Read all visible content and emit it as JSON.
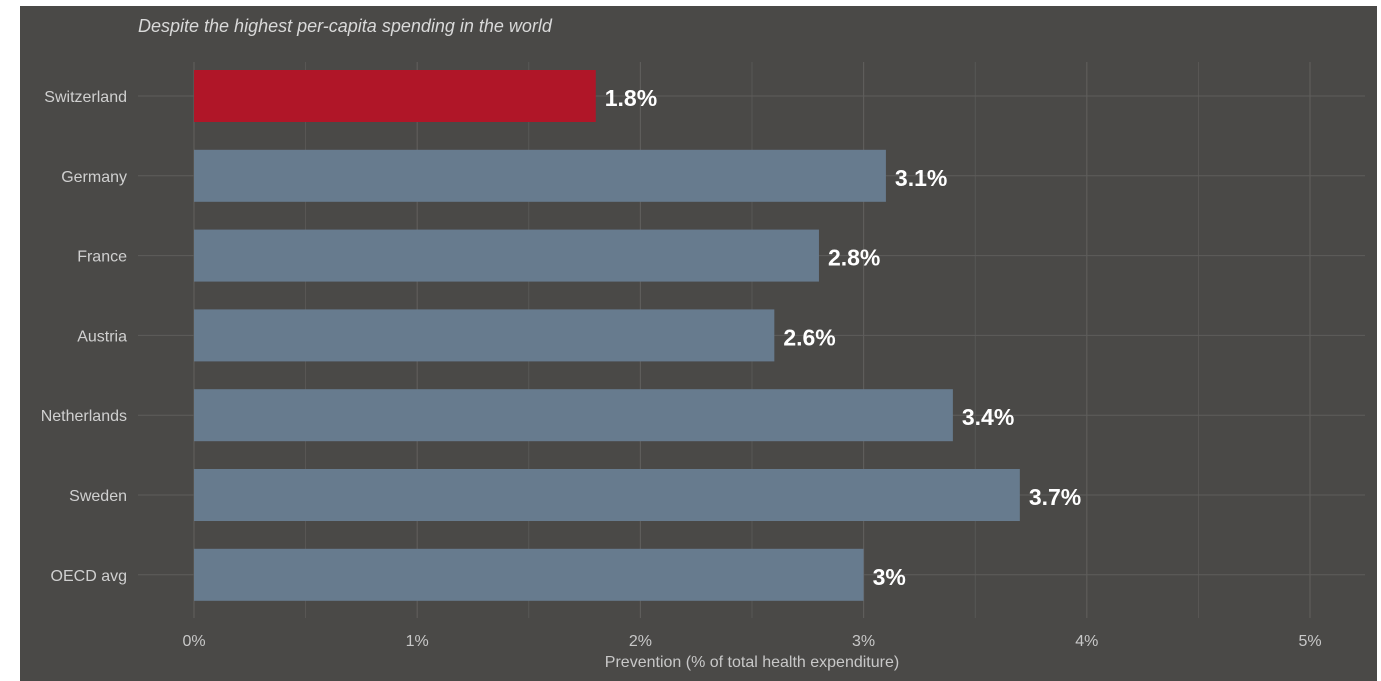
{
  "chart_data": {
    "type": "bar",
    "orientation": "horizontal",
    "subtitle": "Despite the highest per-capita spending in the world",
    "xlabel": "Prevention (% of total health expenditure)",
    "categories": [
      "Switzerland",
      "Germany",
      "France",
      "Austria",
      "Netherlands",
      "Sweden",
      "OECD avg"
    ],
    "values": [
      1.8,
      3.1,
      2.8,
      2.6,
      3.4,
      3.7,
      3.0
    ],
    "value_labels": [
      "1.8%",
      "3.1%",
      "2.8%",
      "2.6%",
      "3.4%",
      "3.7%",
      "3%"
    ],
    "xlim": [
      0,
      5
    ],
    "xticks": [
      0,
      1,
      2,
      3,
      4,
      5
    ],
    "xtick_labels": [
      "0%",
      "1%",
      "2%",
      "3%",
      "4%",
      "5%"
    ],
    "highlight_category": "Switzerland",
    "colors": {
      "highlight": "#b01628",
      "bar": "#677b8e",
      "background": "#4a4947",
      "grid": "#5e5d5b"
    },
    "grid": true,
    "legend": "none"
  }
}
